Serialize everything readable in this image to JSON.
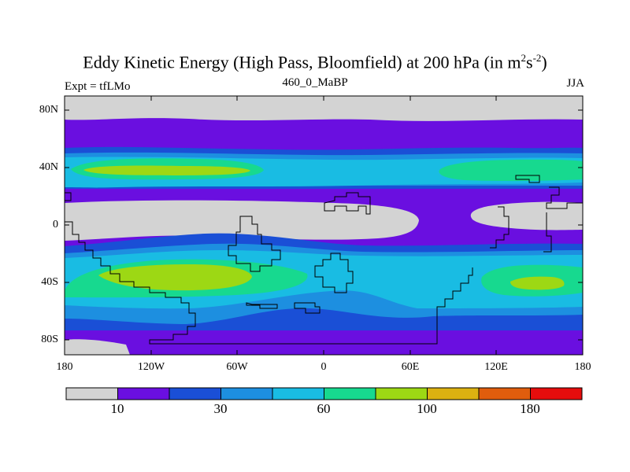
{
  "title": {
    "main": "Eddy Kinetic Energy (High Pass, Bloomfield) at 200 hPa (in m",
    "sup1": "2",
    "mid": "s",
    "sup2": "-2",
    "end": ")"
  },
  "subtitle": "460_0_MaBP",
  "expt_label": "Expt = tfLMo",
  "season_label": "JJA",
  "map": {
    "projection": "cylindrical equidistant",
    "lat_labels": [
      "80N",
      "40N",
      "0",
      "40S",
      "80S"
    ],
    "lon_labels": [
      "180",
      "120W",
      "60W",
      "0",
      "60E",
      "120E",
      "180"
    ]
  },
  "colorbar": {
    "colors": [
      "#d3d3d3",
      "#6a0fe0",
      "#1a4fd6",
      "#1d8fe0",
      "#19bce3",
      "#17d98f",
      "#9dd814",
      "#dcb111",
      "#e05d0d",
      "#e50d0d"
    ],
    "labels": [
      "10",
      "30",
      "60",
      "100",
      "180"
    ]
  },
  "level_colors": {
    "gray": "#d3d3d3",
    "purple": "#6a0fe0",
    "blue": "#1a4fd6",
    "mid_blue": "#1d8fe0",
    "cyan": "#19bce3",
    "green": "#17d98f",
    "yellow_green": "#9dd814"
  }
}
